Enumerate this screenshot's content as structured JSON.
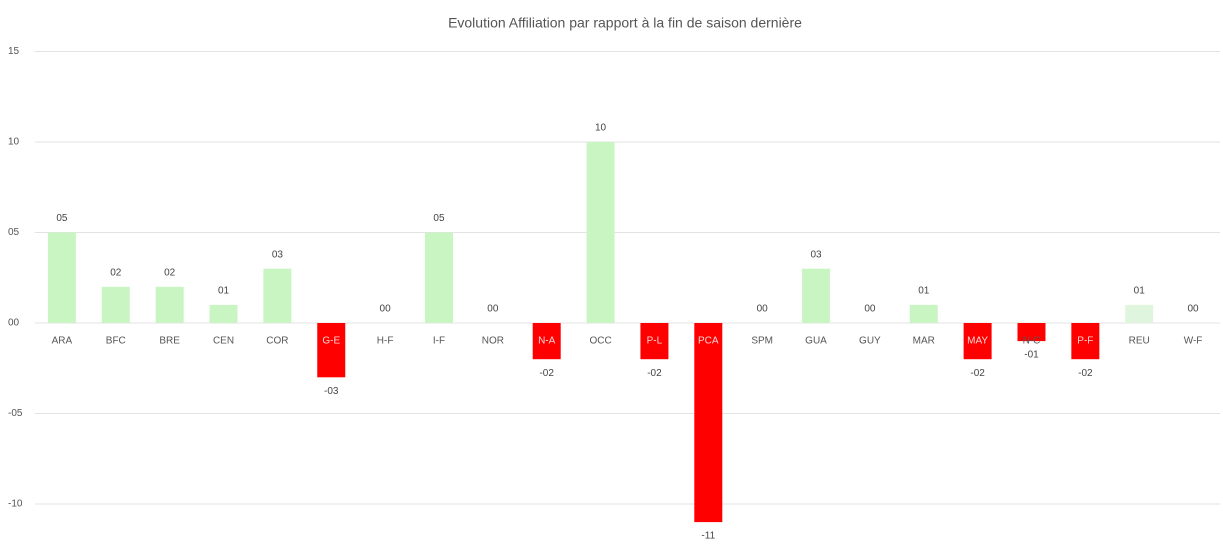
{
  "chart_data": {
    "type": "bar",
    "title": "Evolution Affiliation par rapport à la fin de saison dernière",
    "categories": [
      "ARA",
      "BFC",
      "BRE",
      "CEN",
      "COR",
      "G-E",
      "H-F",
      "I-F",
      "NOR",
      "N-A",
      "OCC",
      "P-L",
      "PCA",
      "SPM",
      "GUA",
      "GUY",
      "MAR",
      "MAY",
      "N-C",
      "P-F",
      "REU",
      "W-F"
    ],
    "values": [
      5,
      2,
      2,
      1,
      3,
      -3,
      0,
      5,
      0,
      -2,
      10,
      -2,
      -11,
      0,
      3,
      0,
      1,
      -2,
      -1,
      -2,
      1,
      0
    ],
    "value_labels": [
      "05",
      "02",
      "02",
      "01",
      "03",
      "-03",
      "00",
      "05",
      "00",
      "-02",
      "10",
      "-02",
      "-11",
      "00",
      "03",
      "00",
      "01",
      "-02",
      "-01",
      "-02",
      "01",
      "00"
    ],
    "colors": [
      "#c8f5c2",
      "#c8f5c2",
      "#c8f5c2",
      "#c8f5c2",
      "#c8f5c2",
      "#ff0000",
      "#c8f5c2",
      "#c8f5c2",
      "#c8f5c2",
      "#ff0000",
      "#c8f5c2",
      "#ff0000",
      "#ff0000",
      "#c8f5c2",
      "#c8f5c2",
      "#c8f5c2",
      "#c8f5c2",
      "#ff0000",
      "#ff0000",
      "#ff0000",
      "#e0f5dd",
      "#c8f5c2"
    ],
    "ylim": [
      -12,
      15
    ],
    "yticks": [
      15,
      10,
      {
        "value": 5,
        "label": "05"
      },
      {
        "value": 0,
        "label": "00"
      },
      {
        "value": -5,
        "label": "-05"
      },
      -10
    ],
    "grid": true
  }
}
